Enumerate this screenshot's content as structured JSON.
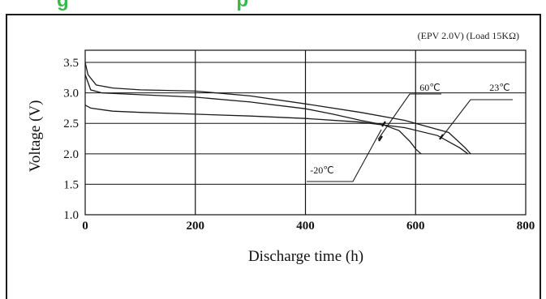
{
  "header": {
    "title": "g                               p"
  },
  "chart_data": {
    "type": "line",
    "title": "",
    "annotation": "(EPV 2.0V) (Load 15KΩ)",
    "xlabel": "Discharge time (h)",
    "ylabel": "Voltage (V)",
    "xlim": [
      0,
      800
    ],
    "ylim": [
      1.0,
      3.7
    ],
    "xticks": [
      0,
      200,
      400,
      600,
      800
    ],
    "yticks": [
      1.0,
      1.5,
      2.0,
      2.5,
      3.0,
      3.5
    ],
    "x_tick_labels": [
      "0",
      "200",
      "400",
      "600",
      "800"
    ],
    "y_tick_labels": [
      "1.0",
      "1.5",
      "2.0",
      "2.5",
      "3.0",
      "3.5"
    ],
    "grid": true,
    "series": [
      {
        "name": "60℃",
        "x": [
          0,
          10,
          30,
          100,
          200,
          300,
          400,
          450,
          500,
          540,
          570,
          590,
          600,
          610
        ],
        "y": [
          3.3,
          3.05,
          3.0,
          2.97,
          2.93,
          2.85,
          2.74,
          2.65,
          2.55,
          2.48,
          2.38,
          2.2,
          2.08,
          2.0
        ]
      },
      {
        "name": "23℃",
        "x": [
          0,
          5,
          20,
          50,
          100,
          200,
          300,
          400,
          500,
          580,
          620,
          660,
          690,
          700
        ],
        "y": [
          3.5,
          3.3,
          3.13,
          3.08,
          3.05,
          3.03,
          2.95,
          2.82,
          2.68,
          2.55,
          2.45,
          2.35,
          2.1,
          2.0
        ]
      },
      {
        "name": "-20℃",
        "x": [
          0,
          10,
          50,
          100,
          200,
          300,
          400,
          500,
          580,
          640,
          680,
          695
        ],
        "y": [
          2.8,
          2.75,
          2.7,
          2.68,
          2.65,
          2.62,
          2.58,
          2.52,
          2.43,
          2.3,
          2.1,
          2.0
        ]
      }
    ]
  }
}
